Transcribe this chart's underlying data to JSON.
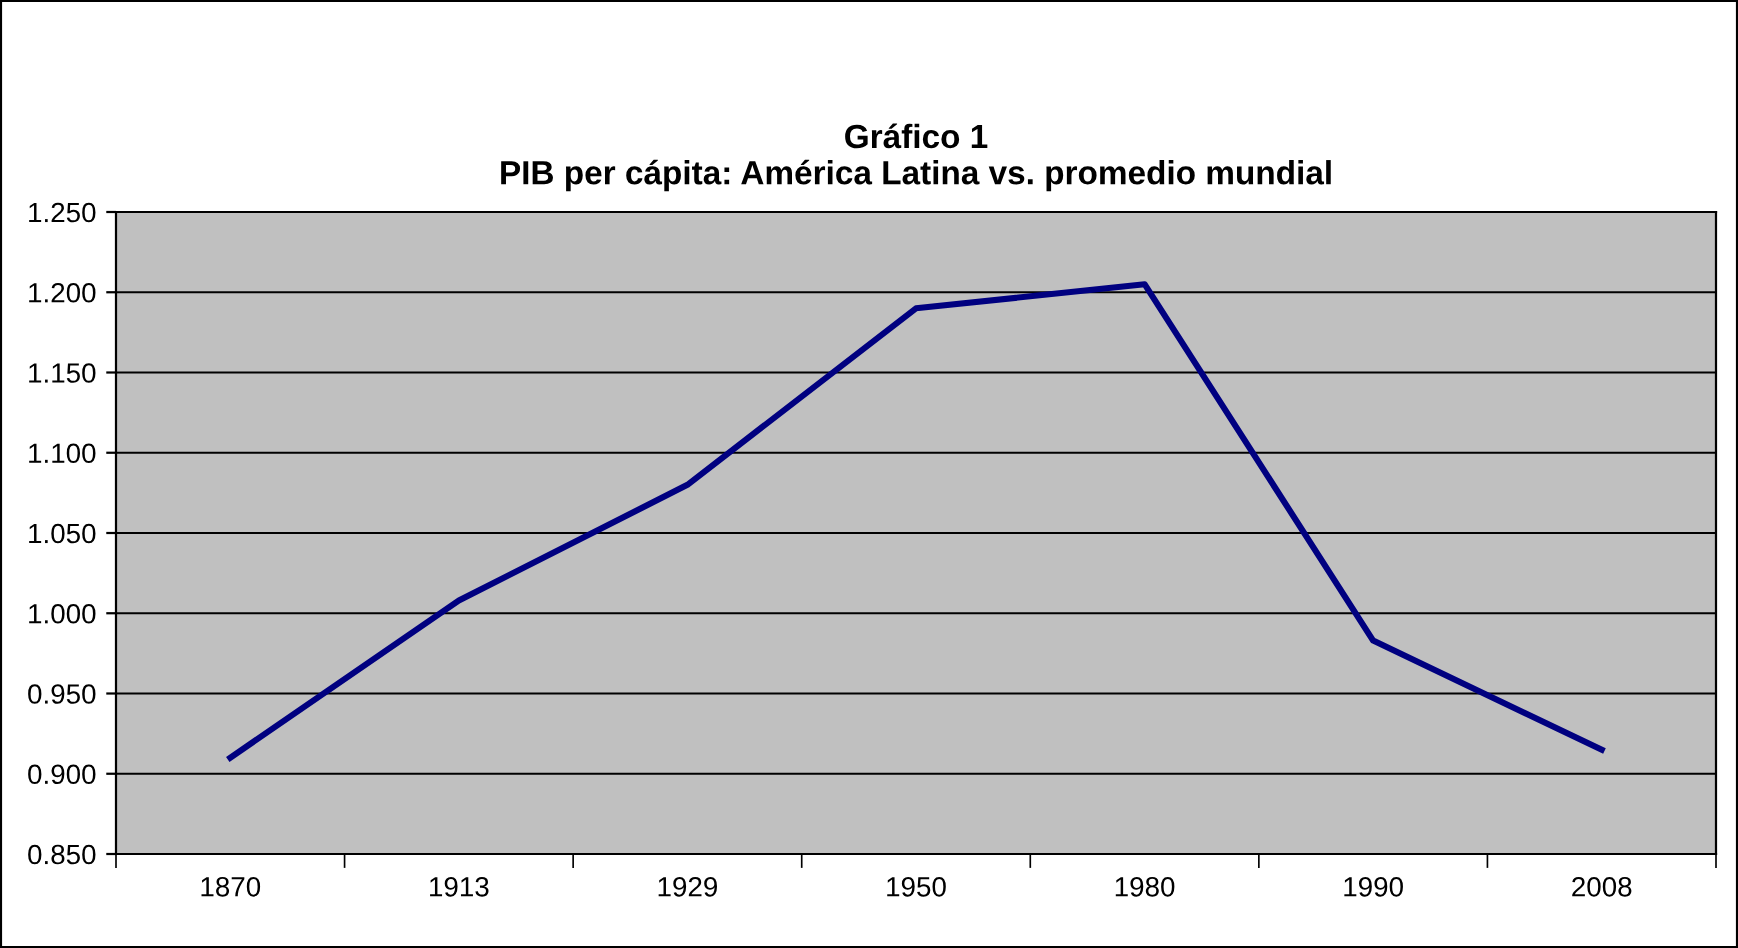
{
  "chart_data": {
    "type": "line",
    "title": "Gráfico 1\nPIB per cápita: América Latina vs. promedio mundial",
    "categories": [
      "1870",
      "1913",
      "1929",
      "1950",
      "1980",
      "1990",
      "2008"
    ],
    "series": [
      {
        "color": "#000080",
        "values": [
          0.91,
          1.008,
          1.08,
          1.19,
          1.205,
          0.983,
          0.915
        ]
      }
    ],
    "ylim": [
      0.85,
      1.25
    ],
    "yticks": [
      {
        "value": 0.85,
        "label": "0.850"
      },
      {
        "value": 0.9,
        "label": "0.900"
      },
      {
        "value": 0.95,
        "label": "0.950"
      },
      {
        "value": 1.0,
        "label": "1.000"
      },
      {
        "value": 1.05,
        "label": "1.050"
      },
      {
        "value": 1.1,
        "label": "1.100"
      },
      {
        "value": 1.15,
        "label": "1.150"
      },
      {
        "value": 1.2,
        "label": "1.200"
      },
      {
        "value": 1.25,
        "label": "1.250"
      }
    ],
    "grid": "y",
    "legend": false,
    "marker": "none",
    "line_style": "solid"
  }
}
